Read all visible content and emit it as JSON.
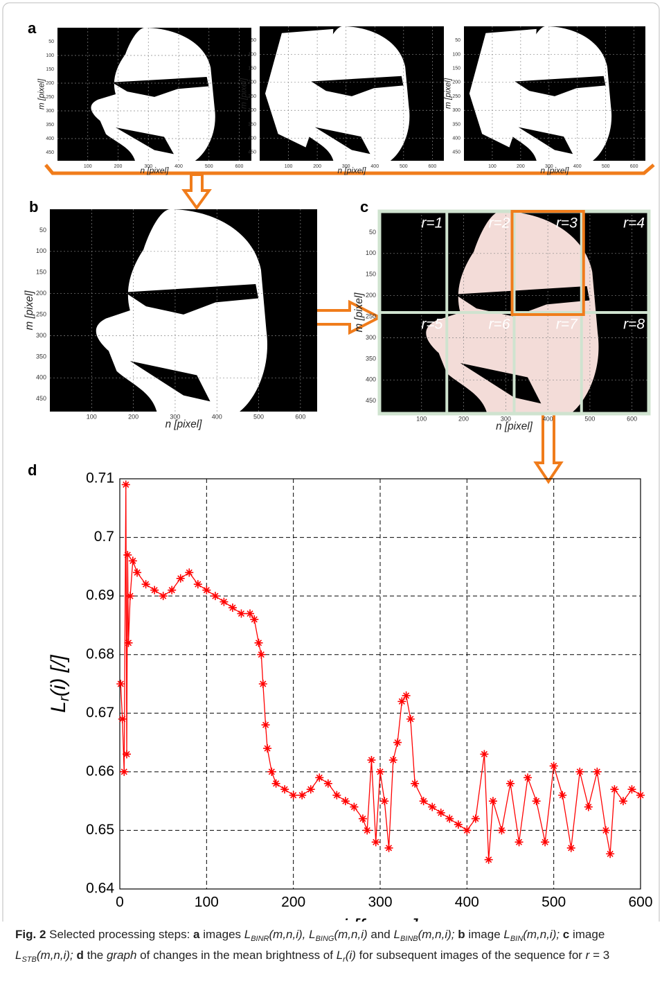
{
  "panel_labels": [
    "a",
    "b",
    "c",
    "d"
  ],
  "image_axes": {
    "xticks": [
      100,
      200,
      300,
      400,
      500,
      600
    ],
    "yticks": [
      50,
      100,
      150,
      200,
      250,
      300,
      350,
      400,
      450
    ],
    "xlabel": "n [pixel]",
    "ylabel": "m [pixel]"
  },
  "regions": [
    "r=1",
    "r=2",
    "r=3",
    "r=4",
    "r=5",
    "r=6",
    "r=7",
    "r=8"
  ],
  "chart_data": {
    "type": "line",
    "color": "#ff0000",
    "xlabel": "i [frame]",
    "ylabel_runs": [
      "L",
      "r",
      "(i) [/]"
    ],
    "x": [
      1,
      3,
      5,
      7,
      8,
      9,
      10,
      12,
      15,
      20,
      30,
      40,
      50,
      60,
      70,
      80,
      90,
      100,
      110,
      120,
      130,
      140,
      150,
      155,
      160,
      163,
      165,
      168,
      170,
      175,
      180,
      190,
      200,
      210,
      220,
      230,
      240,
      250,
      260,
      270,
      280,
      285,
      290,
      295,
      300,
      305,
      310,
      315,
      320,
      325,
      330,
      335,
      340,
      350,
      360,
      370,
      380,
      390,
      400,
      410,
      420,
      425,
      430,
      440,
      450,
      460,
      470,
      480,
      490,
      500,
      510,
      520,
      530,
      540,
      550,
      560,
      565,
      570,
      580,
      590,
      600
    ],
    "values": [
      0.675,
      0.669,
      0.66,
      0.709,
      0.663,
      0.697,
      0.682,
      0.69,
      0.696,
      0.694,
      0.692,
      0.691,
      0.69,
      0.691,
      0.693,
      0.694,
      0.692,
      0.691,
      0.69,
      0.689,
      0.688,
      0.687,
      0.687,
      0.686,
      0.682,
      0.68,
      0.675,
      0.668,
      0.664,
      0.66,
      0.658,
      0.657,
      0.656,
      0.656,
      0.657,
      0.659,
      0.658,
      0.656,
      0.655,
      0.654,
      0.652,
      0.65,
      0.662,
      0.648,
      0.66,
      0.655,
      0.647,
      0.662,
      0.665,
      0.672,
      0.673,
      0.669,
      0.658,
      0.655,
      0.654,
      0.653,
      0.652,
      0.651,
      0.65,
      0.652,
      0.663,
      0.645,
      0.655,
      0.65,
      0.658,
      0.648,
      0.659,
      0.655,
      0.648,
      0.661,
      0.656,
      0.647,
      0.66,
      0.654,
      0.66,
      0.65,
      0.646,
      0.657,
      0.655,
      0.657,
      0.656
    ],
    "xlim": [
      0,
      600
    ],
    "ylim": [
      0.64,
      0.71
    ],
    "xticks": [
      0,
      100,
      200,
      300,
      400,
      500,
      600
    ],
    "yticks": [
      0.64,
      0.65,
      0.66,
      0.67,
      0.68,
      0.69,
      0.7,
      0.71
    ],
    "grid": true
  },
  "caption_runs": [
    {
      "t": "Fig. 2",
      "s": "b"
    },
    {
      "t": "  Selected processing steps: ",
      "s": "n"
    },
    {
      "t": "a",
      "s": "b"
    },
    {
      "t": " images ",
      "s": "n"
    },
    {
      "t": "L",
      "s": "i"
    },
    {
      "t": "BINR",
      "s": "sub"
    },
    {
      "t": "(m,n,i), ",
      "s": "i"
    },
    {
      "t": "L",
      "s": "i"
    },
    {
      "t": "BING",
      "s": "sub"
    },
    {
      "t": "(m,n,i) ",
      "s": "i"
    },
    {
      "t": "and ",
      "s": "n"
    },
    {
      "t": "L",
      "s": "i"
    },
    {
      "t": "BINB",
      "s": "sub"
    },
    {
      "t": "(m,n,i); ",
      "s": "i"
    },
    {
      "t": "b",
      "s": "b"
    },
    {
      "t": " image ",
      "s": "n"
    },
    {
      "t": "L",
      "s": "i"
    },
    {
      "t": "BIN",
      "s": "sub"
    },
    {
      "t": "(m,n,i); ",
      "s": "i"
    },
    {
      "t": "c",
      "s": "b"
    },
    {
      "t": " image ",
      "s": "n"
    },
    {
      "t": "L",
      "s": "i"
    },
    {
      "t": "STB",
      "s": "sub"
    },
    {
      "t": "(m,n,i); ",
      "s": "i"
    },
    {
      "t": "d",
      "s": "b"
    },
    {
      "t": " the ",
      "s": "n"
    },
    {
      "t": "graph",
      "s": "i"
    },
    {
      "t": " of changes in the mean brightness of ",
      "s": "n"
    },
    {
      "t": "L",
      "s": "i"
    },
    {
      "t": "r",
      "s": "sub"
    },
    {
      "t": "(i)",
      "s": "i"
    },
    {
      "t": " for subsequent images of the sequence for ",
      "s": "n"
    },
    {
      "t": "r",
      "s": "i"
    },
    {
      "t": " = 3",
      "s": "n"
    }
  ]
}
